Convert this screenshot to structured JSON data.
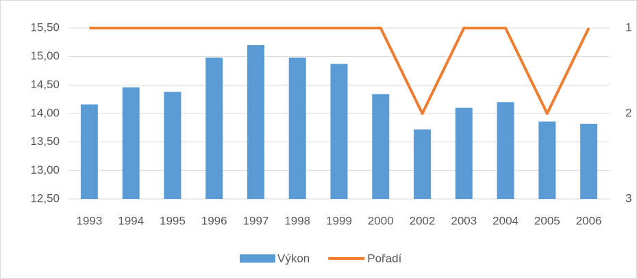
{
  "chart_data": {
    "type": "bar-line",
    "categories": [
      "1993",
      "1994",
      "1995",
      "1996",
      "1997",
      "1998",
      "1999",
      "2000",
      "2002",
      "2003",
      "2004",
      "2005",
      "2006"
    ],
    "series": [
      {
        "name": "Výkon",
        "type": "bar",
        "color": "#5b9bd5",
        "values": [
          14.16,
          14.46,
          14.38,
          14.98,
          15.2,
          14.98,
          14.87,
          14.34,
          13.72,
          14.1,
          14.2,
          13.86,
          13.82
        ]
      },
      {
        "name": "Pořadí",
        "type": "line",
        "axis": "y2",
        "color": "#ed7d31",
        "values": [
          1,
          1,
          1,
          1,
          1,
          1,
          1,
          1,
          2,
          1,
          1,
          2,
          1
        ]
      }
    ],
    "ylim": [
      12.5,
      15.5
    ],
    "yticks": [
      {
        "value": 12.5,
        "label": "12,50"
      },
      {
        "value": 13,
        "label": "13,00"
      },
      {
        "value": 13.5,
        "label": "13,50"
      },
      {
        "value": 14,
        "label": "14,00"
      },
      {
        "value": 14.5,
        "label": "14,50"
      },
      {
        "value": 15,
        "label": "15,00"
      },
      {
        "value": 15.5,
        "label": "15,50"
      }
    ],
    "y2lim": [
      1,
      3
    ],
    "y2ticks": [
      1,
      2,
      3
    ],
    "y2_inverted": true,
    "grid": true,
    "legend": "bottom"
  }
}
